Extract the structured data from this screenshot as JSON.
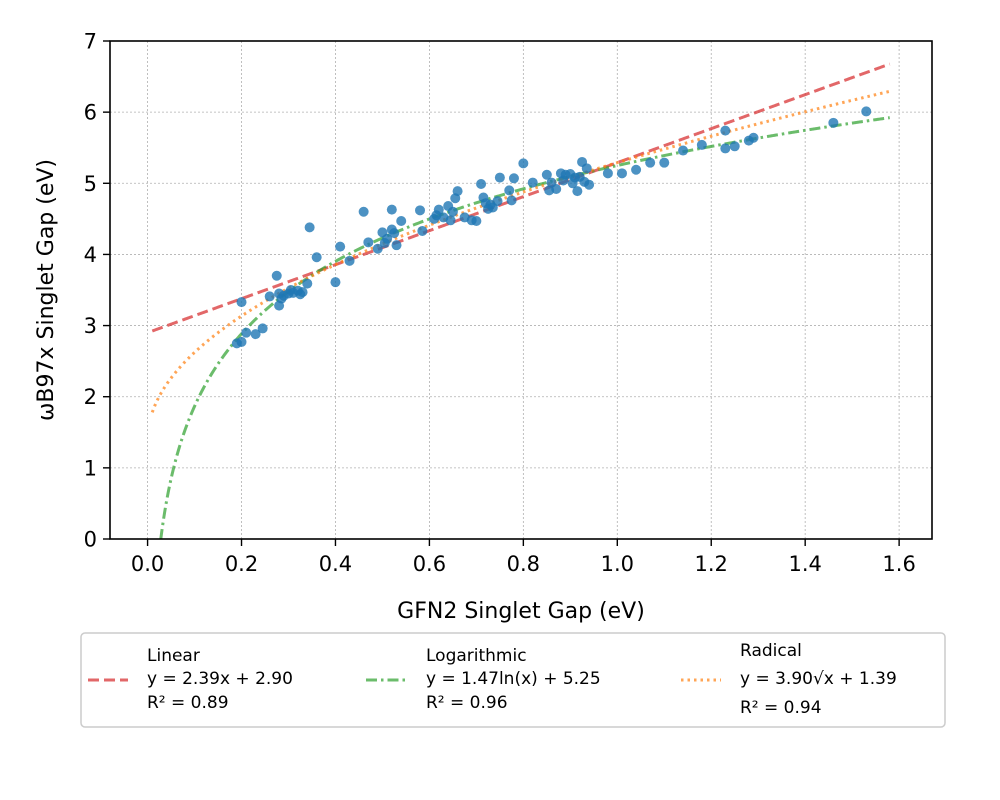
{
  "chart_data": {
    "type": "scatter",
    "xlabel": "GFN2 Singlet Gap (eV)",
    "ylabel": "ωB97x Singlet Gap (eV)",
    "xlim": [
      -0.08,
      1.67
    ],
    "ylim": [
      0,
      7
    ],
    "xticks": [
      "0.0",
      "0.2",
      "0.4",
      "0.6",
      "0.8",
      "1.0",
      "1.2",
      "1.4",
      "1.6"
    ],
    "yticks": [
      "0",
      "1",
      "2",
      "3",
      "4",
      "5",
      "6",
      "7"
    ],
    "grid": true,
    "legend_position": "bottom, below chart",
    "points": {
      "color": "#1f77b4",
      "x": [
        0.19,
        0.2,
        0.2,
        0.21,
        0.23,
        0.245,
        0.26,
        0.275,
        0.28,
        0.28,
        0.285,
        0.29,
        0.3,
        0.305,
        0.31,
        0.32,
        0.325,
        0.33,
        0.34,
        0.345,
        0.36,
        0.4,
        0.41,
        0.43,
        0.46,
        0.47,
        0.49,
        0.5,
        0.505,
        0.51,
        0.52,
        0.52,
        0.525,
        0.53,
        0.54,
        0.58,
        0.585,
        0.61,
        0.615,
        0.62,
        0.63,
        0.64,
        0.645,
        0.65,
        0.655,
        0.66,
        0.675,
        0.69,
        0.7,
        0.71,
        0.715,
        0.72,
        0.725,
        0.73,
        0.735,
        0.745,
        0.75,
        0.77,
        0.775,
        0.78,
        0.8,
        0.82,
        0.85,
        0.855,
        0.86,
        0.87,
        0.88,
        0.885,
        0.89,
        0.9,
        0.905,
        0.91,
        0.915,
        0.92,
        0.925,
        0.93,
        0.935,
        0.94,
        0.98,
        1.01,
        1.04,
        1.07,
        1.1,
        1.14,
        1.18,
        1.23,
        1.23,
        1.25,
        1.28,
        1.29,
        1.46,
        1.53
      ],
      "y": [
        2.75,
        2.77,
        3.33,
        2.9,
        2.88,
        2.96,
        3.41,
        3.7,
        3.28,
        3.45,
        3.38,
        3.42,
        3.45,
        3.5,
        3.46,
        3.49,
        3.44,
        3.47,
        3.59,
        4.38,
        3.96,
        3.61,
        4.11,
        3.91,
        4.6,
        4.17,
        4.08,
        4.31,
        4.16,
        4.22,
        4.35,
        4.63,
        4.3,
        4.13,
        4.47,
        4.62,
        4.33,
        4.5,
        4.55,
        4.63,
        4.52,
        4.68,
        4.48,
        4.6,
        4.79,
        4.89,
        4.52,
        4.48,
        4.47,
        4.99,
        4.8,
        4.72,
        4.64,
        4.7,
        4.66,
        4.75,
        5.08,
        4.9,
        4.76,
        5.07,
        5.28,
        5.01,
        5.12,
        4.9,
        5.01,
        4.92,
        5.14,
        5.04,
        5.12,
        5.13,
        5.0,
        5.08,
        4.89,
        5.09,
        5.3,
        5.02,
        5.21,
        4.98,
        5.14,
        5.14,
        5.19,
        5.29,
        5.29,
        5.46,
        5.54,
        5.49,
        5.74,
        5.52,
        5.6,
        5.64,
        5.85,
        6.01
      ]
    },
    "series": [
      {
        "name": "Linear",
        "equation": "y = 2.39x + 2.90",
        "r2": "R² = 0.89",
        "color": "#d62728",
        "style": "dashed",
        "model": "linear",
        "a": 2.39,
        "b": 2.9
      },
      {
        "name": "Logarithmic",
        "equation": "y = 1.47ln(x) + 5.25",
        "r2": "R² = 0.96",
        "color": "#2ca02c",
        "style": "dashdot",
        "model": "log",
        "a": 1.47,
        "b": 5.25
      },
      {
        "name": "Radical",
        "equation": "y = 3.90√x + 1.39",
        "r2": "R² = 0.94",
        "color": "#ff7f0e",
        "style": "dotted",
        "model": "sqrt",
        "a": 3.9,
        "b": 1.39
      }
    ]
  }
}
